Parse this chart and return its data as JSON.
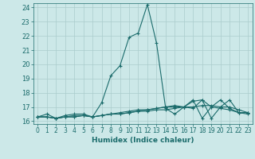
{
  "xlabel": "Humidex (Indice chaleur)",
  "xlim": [
    -0.5,
    23.5
  ],
  "ylim": [
    15.8,
    24.3
  ],
  "yticks": [
    16,
    17,
    18,
    19,
    20,
    21,
    22,
    23,
    24
  ],
  "xticks": [
    0,
    1,
    2,
    3,
    4,
    5,
    6,
    7,
    8,
    9,
    10,
    11,
    12,
    13,
    14,
    15,
    16,
    17,
    18,
    19,
    20,
    21,
    22,
    23
  ],
  "bg_color": "#cce8e8",
  "grid_color": "#aacccc",
  "line_color": "#1a6b6b",
  "series": [
    {
      "x": [
        0,
        1,
        2,
        3,
        4,
        5,
        6,
        7,
        8,
        9,
        10,
        11,
        12,
        13,
        14,
        15,
        16,
        17,
        18,
        19,
        20,
        21,
        22,
        23
      ],
      "y": [
        16.3,
        16.5,
        16.2,
        16.4,
        16.5,
        16.5,
        16.3,
        17.3,
        19.2,
        19.9,
        21.9,
        22.2,
        24.2,
        21.5,
        16.9,
        16.5,
        17.0,
        16.9,
        17.5,
        16.2,
        17.0,
        17.5,
        16.6,
        16.6
      ]
    },
    {
      "x": [
        0,
        1,
        2,
        3,
        4,
        5,
        6,
        7,
        8,
        9,
        10,
        11,
        12,
        13,
        14,
        15,
        16,
        17,
        18,
        19,
        20,
        21,
        22,
        23
      ],
      "y": [
        16.3,
        16.3,
        16.2,
        16.3,
        16.3,
        16.4,
        16.3,
        16.4,
        16.5,
        16.5,
        16.6,
        16.7,
        16.8,
        16.9,
        17.0,
        17.0,
        17.0,
        17.0,
        17.1,
        17.1,
        17.0,
        17.0,
        16.8,
        16.6
      ]
    },
    {
      "x": [
        0,
        1,
        2,
        3,
        4,
        5,
        6,
        7,
        8,
        9,
        10,
        11,
        12,
        13,
        14,
        15,
        16,
        17,
        18,
        19,
        20,
        21,
        22,
        23
      ],
      "y": [
        16.3,
        16.3,
        16.2,
        16.3,
        16.4,
        16.4,
        16.3,
        16.4,
        16.5,
        16.5,
        16.6,
        16.7,
        16.7,
        16.8,
        16.8,
        16.9,
        17.0,
        17.5,
        16.2,
        17.0,
        17.5,
        16.9,
        16.6,
        16.6
      ]
    },
    {
      "x": [
        0,
        1,
        2,
        3,
        4,
        5,
        6,
        7,
        8,
        9,
        10,
        11,
        12,
        13,
        14,
        15,
        16,
        17,
        18,
        19,
        20,
        21,
        22,
        23
      ],
      "y": [
        16.3,
        16.3,
        16.2,
        16.3,
        16.3,
        16.4,
        16.3,
        16.4,
        16.5,
        16.6,
        16.7,
        16.8,
        16.8,
        16.9,
        17.0,
        17.1,
        17.0,
        17.4,
        17.5,
        17.0,
        16.9,
        16.8,
        16.6,
        16.5
      ]
    }
  ]
}
